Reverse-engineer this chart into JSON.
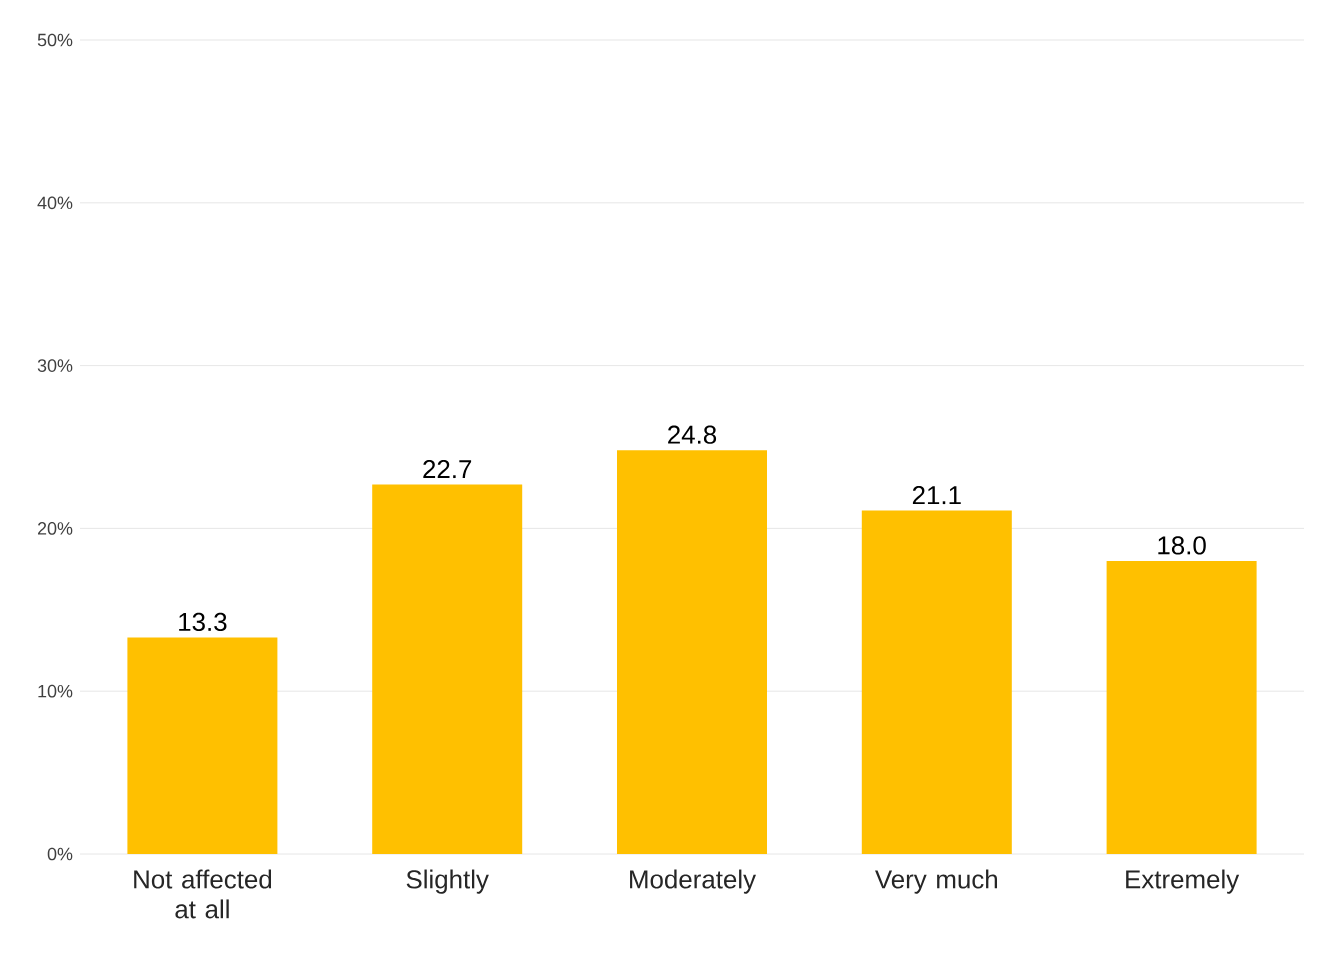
{
  "chart_data": {
    "type": "bar",
    "categories": [
      "Not affected at all",
      "Slightly",
      "Moderately",
      "Very much",
      "Extremely"
    ],
    "values": [
      13.3,
      22.7,
      24.8,
      21.1,
      18.0
    ],
    "color": "#ffc000",
    "ylim": [
      0,
      50
    ],
    "yticks": [
      {
        "value": 0,
        "label": "0%"
      },
      {
        "value": 10,
        "label": "10%"
      },
      {
        "value": 20,
        "label": "20%"
      },
      {
        "value": 30,
        "label": "30%"
      },
      {
        "value": 40,
        "label": "40%"
      },
      {
        "value": 50,
        "label": "50%"
      }
    ],
    "grid": "y",
    "value_labels": [
      "13.3",
      "22.7",
      "24.8",
      "21.1",
      "18.0"
    ]
  }
}
